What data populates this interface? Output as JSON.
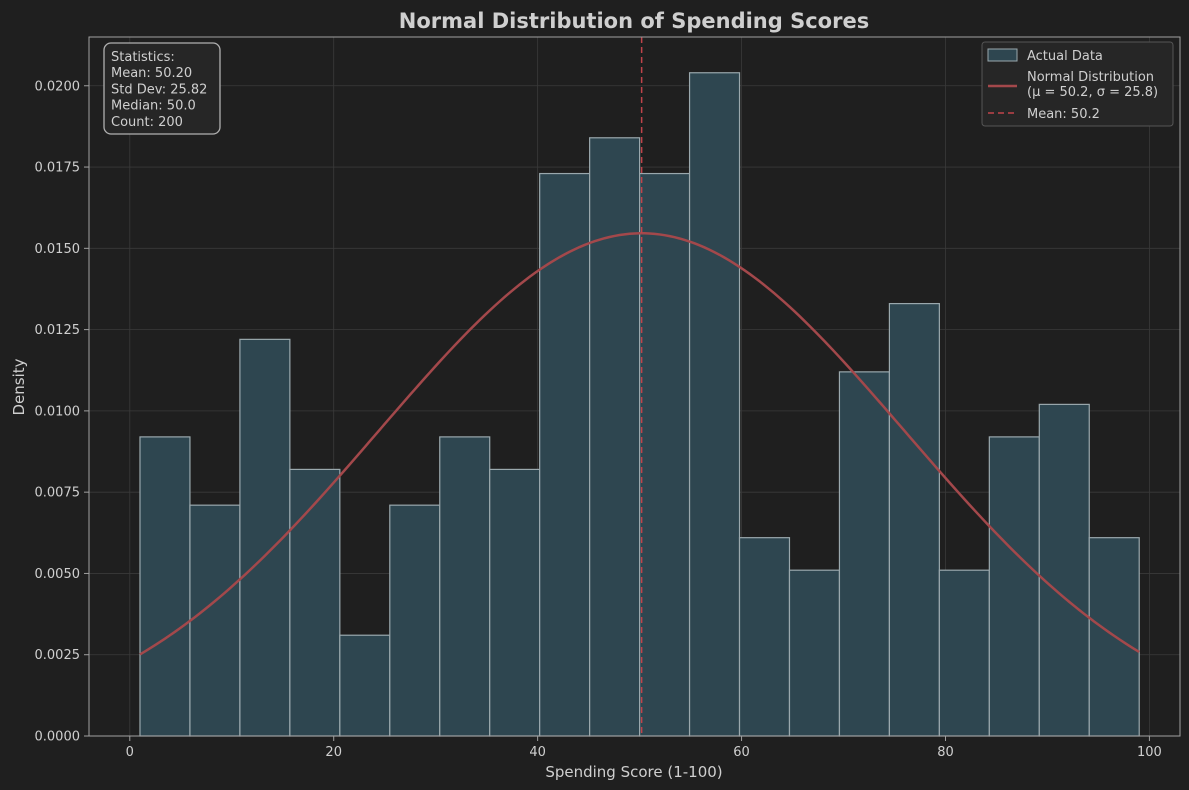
{
  "chart_data": {
    "type": "bar",
    "title": "Normal Distribution of Spending Scores",
    "xlabel": "Spending Score (1-100)",
    "ylabel": "Density",
    "xlim": [
      -4,
      103
    ],
    "ylim": [
      0,
      0.0215
    ],
    "xticks": [
      0,
      20,
      40,
      60,
      80,
      100
    ],
    "yticks": [
      0.0,
      0.0025,
      0.005,
      0.0075,
      0.01,
      0.0125,
      0.015,
      0.0175,
      0.02
    ],
    "ytick_labels": [
      "0.0000",
      "0.0025",
      "0.0050",
      "0.0075",
      "0.0100",
      "0.0125",
      "0.0150",
      "0.0175",
      "0.0200"
    ],
    "grid": true,
    "legend_position": "top-right",
    "legend": [
      {
        "label": "Actual Data",
        "kind": "patch",
        "color": "#2e4650"
      },
      {
        "label": "Normal Distribution\n(μ = 50.2, σ = 25.8)",
        "kind": "line",
        "color": "#a3484b"
      },
      {
        "label": "Mean: 50.2",
        "kind": "dashed",
        "color": "#c0444a"
      }
    ],
    "stats_box": {
      "position": "top-left",
      "lines": [
        "Statistics:",
        "Mean: 50.20",
        "Std Dev: 25.82",
        "Median: 50.0",
        "Count: 200"
      ]
    },
    "histogram": {
      "name": "Actual Data",
      "bin_edges": [
        1.0,
        5.9,
        10.8,
        15.7,
        20.6,
        25.5,
        30.4,
        35.3,
        40.2,
        45.1,
        50.0,
        54.9,
        59.8,
        64.7,
        69.6,
        74.5,
        79.4,
        84.3,
        89.2,
        94.1,
        99.0
      ],
      "values": [
        0.0092,
        0.0071,
        0.0122,
        0.0082,
        0.0031,
        0.0071,
        0.0092,
        0.0082,
        0.0173,
        0.0184,
        0.0173,
        0.0204,
        0.0061,
        0.0051,
        0.0112,
        0.0133,
        0.0051,
        0.0092,
        0.0102,
        0.0061
      ],
      "fill": "#2e4650",
      "edge": "#9aa8ad"
    },
    "normal_curve": {
      "name": "Normal Distribution",
      "mu": 50.2,
      "sigma": 25.8,
      "x_range": [
        1,
        99
      ],
      "color": "#a3484b"
    },
    "mean_line": {
      "name": "Mean",
      "x": 50.2,
      "color": "#c0444a"
    },
    "colors": {
      "background": "#1f1f1f",
      "axes_face": "#1f1f1f",
      "text": "#cfcfcf",
      "grid": "#3a3a3a",
      "spine": "#a0a0a0"
    }
  }
}
